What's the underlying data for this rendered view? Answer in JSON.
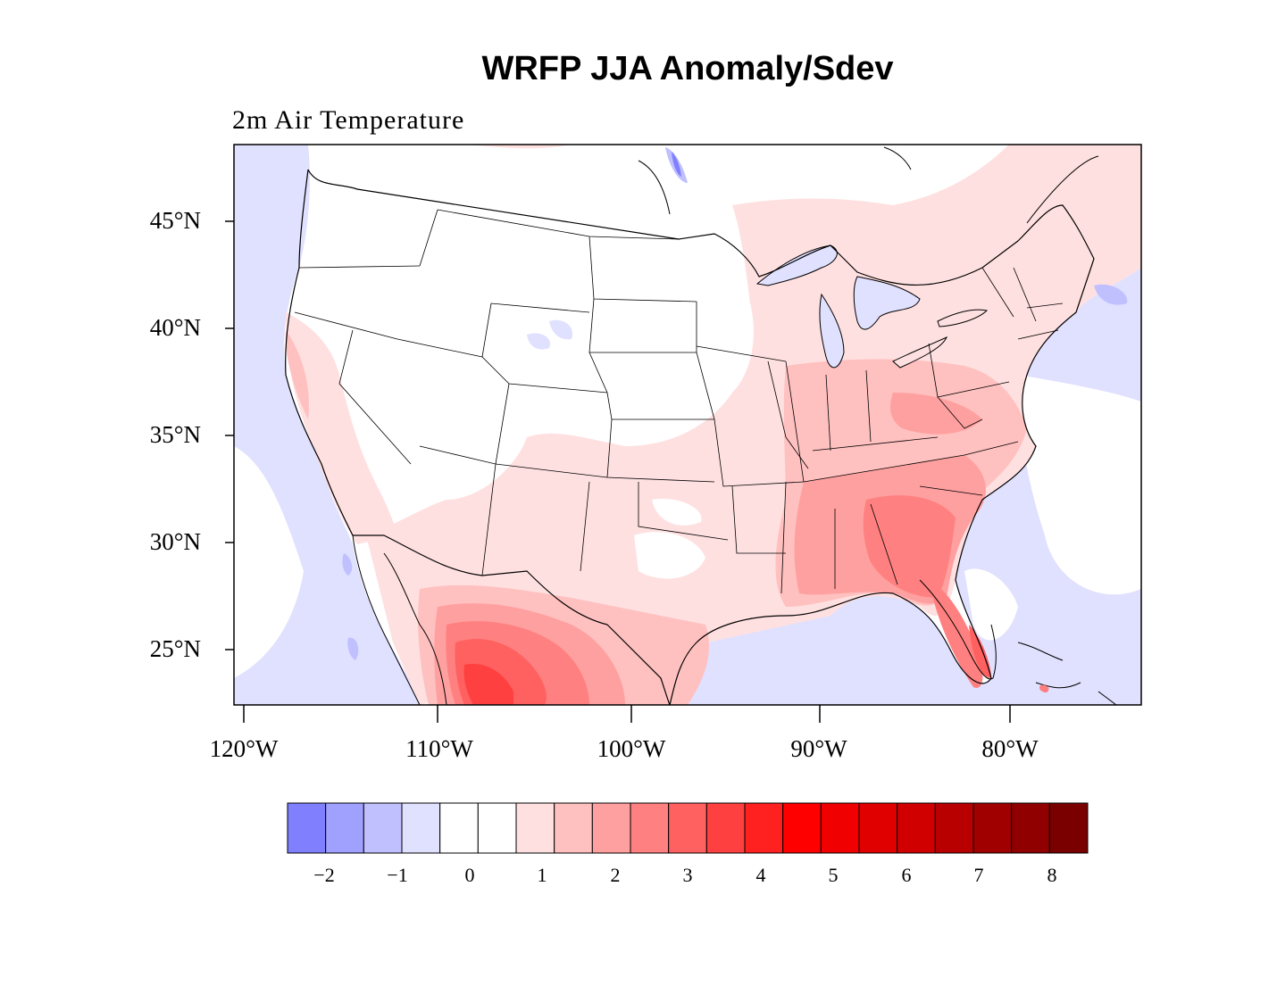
{
  "title": "WRFP JJA Anomaly/Sdev",
  "subtitle": "2m Air Temperature",
  "map": {
    "lat_ticks": [
      "45°N",
      "40°N",
      "35°N",
      "30°N",
      "25°N"
    ],
    "lon_ticks": [
      "120°W",
      "110°W",
      "100°W",
      "90°W",
      "80°W"
    ],
    "lon_range": [
      -120.5,
      -73.5
    ],
    "lat_range": [
      22.5,
      48.5
    ]
  },
  "colorbar": {
    "tick_labels": [
      "−2",
      "−1",
      "0",
      "1",
      "2",
      "3",
      "4",
      "5",
      "6",
      "7",
      "8"
    ],
    "colors": [
      "#8080ff",
      "#a0a0ff",
      "#c0c0ff",
      "#e0e0ff",
      "#ffffff",
      "#ffffff",
      "#ffe0e0",
      "#ffc0c0",
      "#ffa0a0",
      "#ff8080",
      "#ff6060",
      "#ff4040",
      "#ff2020",
      "#ff0000",
      "#f00000",
      "#e00000",
      "#d00000",
      "#b80000",
      "#a00000",
      "#900000",
      "#7a0000"
    ]
  }
}
